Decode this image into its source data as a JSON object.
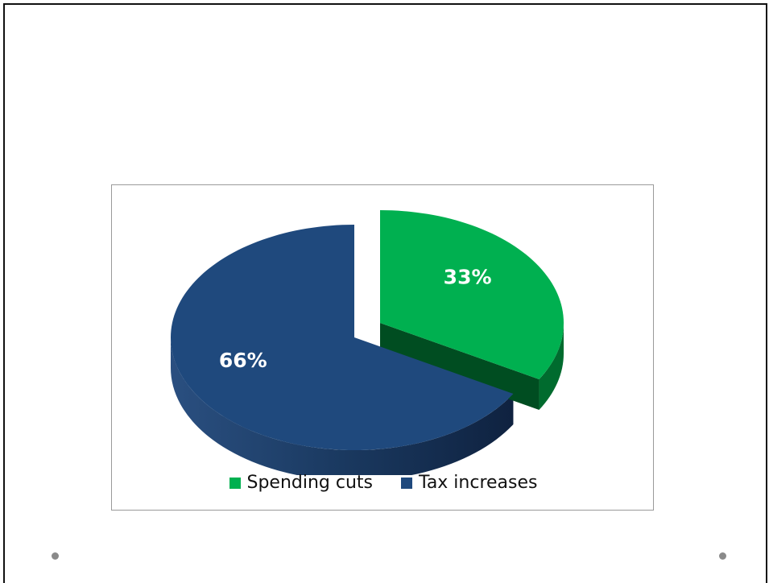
{
  "chart_data": {
    "type": "pie",
    "title": "",
    "slices": [
      {
        "label": "Spending cuts",
        "value": 33,
        "data_label": "33%",
        "color": "#00b050",
        "side_color": "#006b2e"
      },
      {
        "label": "Tax increases",
        "value": 66,
        "data_label": "66%",
        "color": "#1f497d",
        "side_color": "#142f52"
      }
    ],
    "legend_position": "bottom",
    "style": "3d-exploded"
  }
}
